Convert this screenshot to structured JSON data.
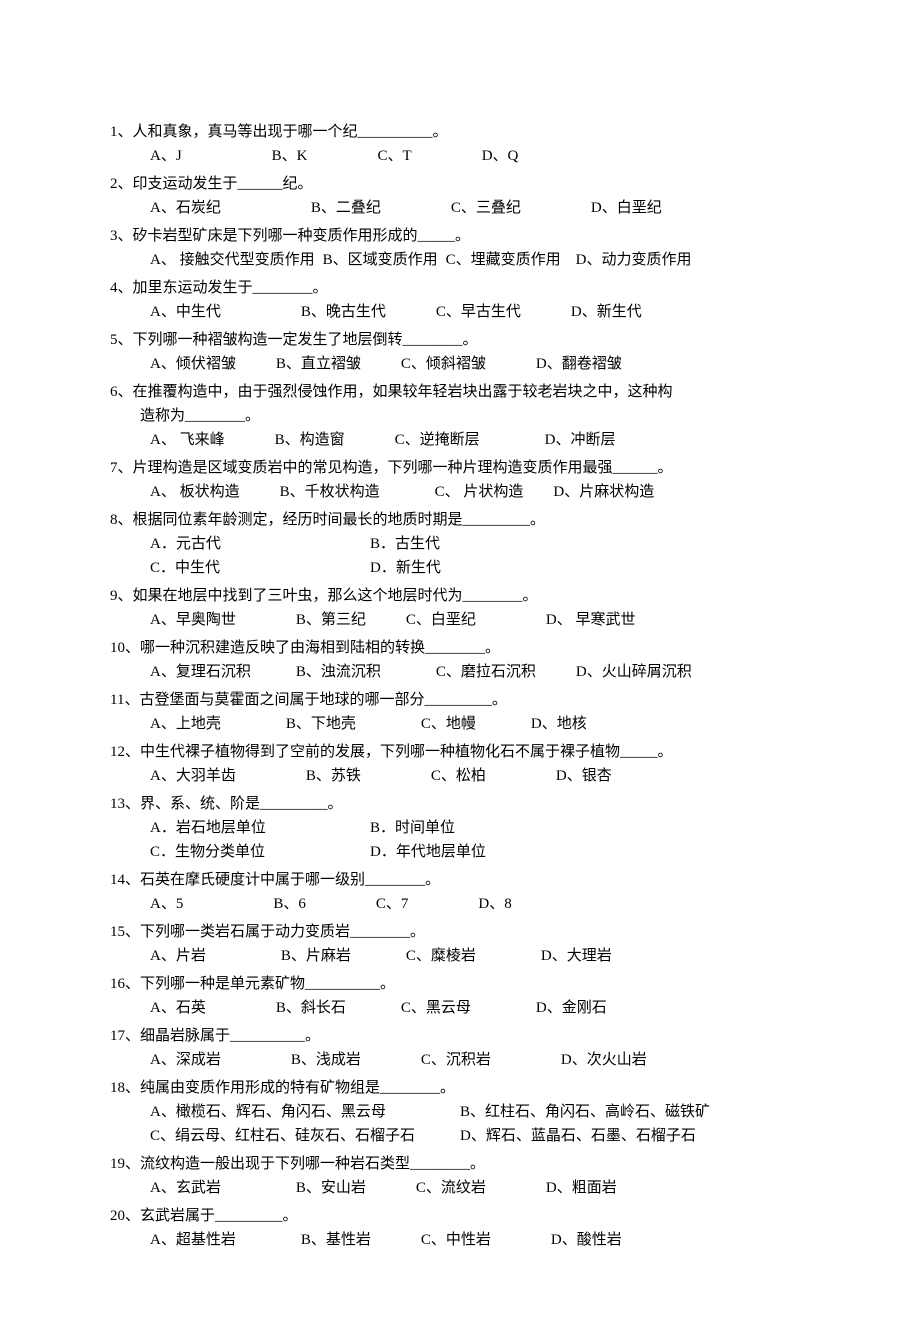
{
  "questions": [
    {
      "num": "1、",
      "text": "人和真象，真马等出现于哪一个纪__________。",
      "options": [
        "A、J",
        "B、K",
        "C、T",
        "D、Q"
      ],
      "spacing": "wide"
    },
    {
      "num": "2、",
      "text": "印支运动发生于______纪。",
      "options": [
        "A、石炭纪",
        "B、二叠纪",
        "C、三叠纪",
        "D、白垩纪"
      ],
      "spacing": "wide"
    },
    {
      "num": "3、",
      "text": "矽卡岩型矿床是下列哪一种变质作用形成的_____。",
      "options": [
        "A、 接触交代型变质作用",
        "B、区域变质作用",
        "C、埋藏变质作用",
        "D、动力变质作用"
      ],
      "spacing": "tight"
    },
    {
      "num": "4、",
      "text": "加里东运动发生于________。",
      "options": [
        "A、中生代",
        "B、晚古生代",
        "C、早古生代",
        "D、新生代"
      ],
      "spacing": "med"
    },
    {
      "num": "5、",
      "text": "下列哪一种褶皱构造一定发生了地层倒转________。",
      "options": [
        "A、倾伏褶皱",
        "B、直立褶皱",
        "C、倾斜褶皱",
        "D、翻卷褶皱"
      ],
      "spacing": "med2"
    },
    {
      "num": "6、",
      "text": "在推覆构造中，由于强烈侵蚀作用，如果较年轻岩块出露于较老岩块之中，这种构",
      "continuation": "造称为________。",
      "options": [
        "A、 飞来峰",
        "B、构造窗",
        "C、逆掩断层",
        "D、冲断层"
      ],
      "spacing": "med3"
    },
    {
      "num": "7、",
      "text": "片理构造是区域变质岩中的常见构造，下列哪一种片理构造变质作用最强______。",
      "options": [
        "A、 板状构造",
        "B、千枚状构造",
        "C、 片状构造",
        "D、片麻状构造"
      ],
      "spacing": "med4"
    },
    {
      "num": "8、",
      "text": "根据同位素年龄测定，经历时间最长的地质时期是_________。",
      "options_two_col": [
        [
          "A．元古代",
          "B．古生代"
        ],
        [
          "C．中生代",
          "D．新生代"
        ]
      ]
    },
    {
      "num": "9、",
      "text": "如果在地层中找到了三叶虫，那么这个地层时代为________。",
      "options": [
        "A、早奥陶世",
        "B、第三纪",
        "C、白垩纪",
        "D、 早寒武世"
      ],
      "spacing": "med5"
    },
    {
      "num": "10、",
      "text": "哪一种沉积建造反映了由海相到陆相的转换________。",
      "options": [
        "A、复理石沉积",
        "B、浊流沉积",
        "C、磨拉石沉积",
        "D、火山碎屑沉积"
      ],
      "spacing": "med6"
    },
    {
      "num": "11、",
      "text": "古登堡面与莫霍面之间属于地球的哪一部分_________。",
      "options": [
        "A、上地壳",
        "B、下地壳",
        "C、地幔",
        "D、地核"
      ],
      "spacing": "med7"
    },
    {
      "num": "12、",
      "text": "中生代裸子植物得到了空前的发展，下列哪一种植物化石不属于裸子植物_____。",
      "options": [
        "A、大羽羊齿",
        "B、苏铁",
        "C、松柏",
        "D、银杏"
      ],
      "spacing": "med8"
    },
    {
      "num": "13、",
      "text": "界、系、统、阶是_________。",
      "options_two_col": [
        [
          "A．岩石地层单位",
          "B．时间单位"
        ],
        [
          "C．生物分类单位",
          "D．年代地层单位"
        ]
      ]
    },
    {
      "num": "14、",
      "text": "石英在摩氏硬度计中属于哪一级别________。",
      "options": [
        "A、5",
        "B、6",
        "C、7",
        "D、8"
      ],
      "spacing": "wide2"
    },
    {
      "num": "15、",
      "text": "下列哪一类岩石属于动力变质岩________。",
      "options": [
        "A、片岩",
        "B、片麻岩",
        "C、糜棱岩",
        "D、大理岩"
      ],
      "spacing": "med9"
    },
    {
      "num": "16、",
      "text": "下列哪一种是单元素矿物__________。",
      "options": [
        "A、石英",
        "B、斜长石",
        "C、黑云母",
        "D、金刚石"
      ],
      "spacing": "med10"
    },
    {
      "num": "17、",
      "text": "细晶岩脉属于__________。",
      "options": [
        "A、深成岩",
        "B、浅成岩",
        "C、沉积岩",
        "D、次火山岩"
      ],
      "spacing": "med11"
    },
    {
      "num": "18、",
      "text": "纯属由变质作用形成的特有矿物组是________。",
      "options_two_row": [
        [
          "A、橄榄石、辉石、角闪石、黑云母",
          "B、红柱石、角闪石、高岭石、磁铁矿"
        ],
        [
          "C、绢云母、红柱石、硅灰石、石榴子石",
          "D、辉石、蓝晶石、石墨、石榴子石"
        ]
      ]
    },
    {
      "num": "19、",
      "text": "流纹构造一般出现于下列哪一种岩石类型________。",
      "options": [
        "A、玄武岩",
        "B、安山岩",
        "C、流纹岩",
        "D、粗面岩"
      ],
      "spacing": "med12"
    },
    {
      "num": "20、",
      "text": "玄武岩属于_________。",
      "options": [
        "A、超基性岩",
        "B、基性岩",
        "C、中性岩",
        "D、酸性岩"
      ],
      "spacing": "med13"
    }
  ]
}
